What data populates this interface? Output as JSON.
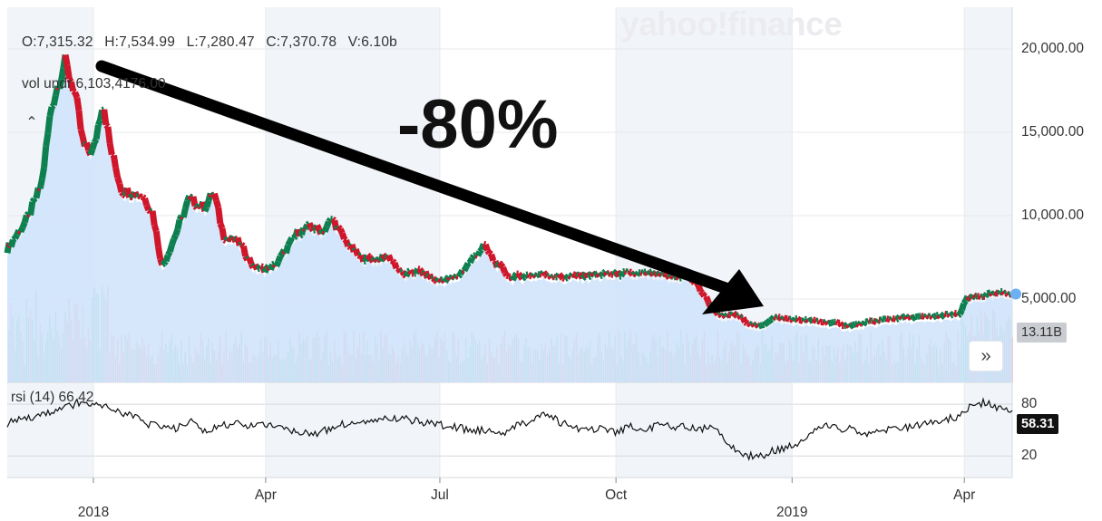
{
  "brand": "yahoo!finance",
  "annotation": "-80%",
  "ohlc": {
    "open": "O:7,315.32",
    "high": "H:7,534.99",
    "low": "L:7,280.47",
    "close": "C:7,370.78",
    "volume": "V:6.10b"
  },
  "volume_indicator": {
    "label": "vol undr",
    "value": "6,103,4​​​​176.00"
  },
  "rsi_indicator": {
    "label": "rsi (14)",
    "value": "66.42"
  },
  "badges": {
    "volume": "13.11B",
    "rsi": "58.31"
  },
  "colors": {
    "up": "#0e7f4f",
    "down": "#d0162a",
    "area_fill": "#cfe3fb",
    "line": "#111111",
    "last_dot": "#6ab0f3"
  },
  "icons": {
    "collapse": "chevron-up-icon",
    "expand": "double-chevron-right-icon"
  },
  "chart_data": {
    "type": "line",
    "title": "",
    "price_axis": {
      "ticks": [
        "5,000.00",
        "10,000.00",
        "15,000.00",
        "20,000.00"
      ],
      "tick_values": [
        5000,
        10000,
        15000,
        20000
      ],
      "ylim": [
        0,
        22500
      ]
    },
    "rsi_axis": {
      "ticks": [
        "20",
        "80"
      ],
      "tick_values": [
        20,
        80
      ],
      "ylim": [
        -5,
        97
      ]
    },
    "x_ticks": [
      "Apr",
      "Jul",
      "Oct",
      "Apr"
    ],
    "x_tick_dates": [
      "2018-04-01",
      "2018-07-01",
      "2018-10-01",
      "2019-04-01"
    ],
    "year_ticks": [
      "2018",
      "2019"
    ],
    "year_tick_dates": [
      "2018-01-01",
      "2019-01-01"
    ],
    "x_range": [
      "2017-11-17",
      "2019-04-26"
    ],
    "series": [
      {
        "dates": [
          "2017-11-17",
          "2017-11-28",
          "2017-12-05",
          "2017-12-10",
          "2017-12-17",
          "2017-12-22",
          "2017-12-27",
          "2018-01-01",
          "2018-01-06",
          "2018-01-10",
          "2018-01-16",
          "2018-01-21",
          "2018-01-27",
          "2018-02-01",
          "2018-02-06",
          "2018-02-12",
          "2018-02-20",
          "2018-02-28",
          "2018-03-05",
          "2018-03-10",
          "2018-03-18",
          "2018-03-26",
          "2018-04-01",
          "2018-04-06",
          "2018-04-12",
          "2018-04-18",
          "2018-04-24",
          "2018-05-01",
          "2018-05-06",
          "2018-05-12",
          "2018-05-20",
          "2018-05-28",
          "2018-06-05",
          "2018-06-12",
          "2018-06-20",
          "2018-06-29",
          "2018-07-10",
          "2018-07-18",
          "2018-07-24",
          "2018-07-30",
          "2018-08-07",
          "2018-08-14",
          "2018-08-24",
          "2018-09-04",
          "2018-09-12",
          "2018-09-20",
          "2018-09-30",
          "2018-10-10",
          "2018-10-20",
          "2018-10-30",
          "2018-11-08",
          "2018-11-14",
          "2018-11-19",
          "2018-11-25",
          "2018-12-02",
          "2018-12-09",
          "2018-12-15",
          "2018-12-22",
          "2018-12-30",
          "2019-01-10",
          "2019-01-20",
          "2019-02-01",
          "2019-02-10",
          "2019-02-20",
          "2019-03-01",
          "2019-03-10",
          "2019-03-20",
          "2019-03-30",
          "2019-04-02",
          "2019-04-10",
          "2019-04-18",
          "2019-04-26"
        ],
        "values": [
          8000,
          9900,
          11900,
          16500,
          19200,
          17600,
          14100,
          13800,
          17000,
          14000,
          11500,
          11400,
          11200,
          10200,
          6900,
          8600,
          11000,
          10500,
          11400,
          8800,
          8400,
          6900,
          6800,
          7000,
          8000,
          9000,
          9300,
          9100,
          9800,
          8600,
          7500,
          7400,
          7500,
          6400,
          6700,
          6100,
          6300,
          7400,
          8200,
          7200,
          6300,
          6400,
          6500,
          6300,
          6400,
          6450,
          6500,
          6500,
          6500,
          6300,
          6400,
          5600,
          4700,
          3900,
          4100,
          3600,
          3300,
          3900,
          3800,
          3700,
          3600,
          3400,
          3600,
          3800,
          3900,
          3900,
          4000,
          4100,
          5000,
          5200,
          5300,
          5400
        ]
      }
    ],
    "rsi_values": [
      58,
      62,
      66,
      70,
      75,
      82,
      80,
      76,
      70,
      65,
      56,
      55,
      52,
      60,
      47,
      54,
      58,
      56,
      57,
      52,
      50,
      47,
      47,
      53,
      58,
      60,
      62,
      62,
      64,
      60,
      58,
      55,
      52,
      49,
      50,
      47,
      56,
      60,
      68,
      60,
      52,
      50,
      54,
      48,
      54,
      52,
      55,
      54,
      53,
      52,
      54,
      34,
      22,
      18,
      25,
      30,
      34,
      50,
      55,
      52,
      50,
      46,
      50,
      52,
      54,
      58,
      62,
      65,
      78,
      82,
      76,
      70
    ]
  }
}
